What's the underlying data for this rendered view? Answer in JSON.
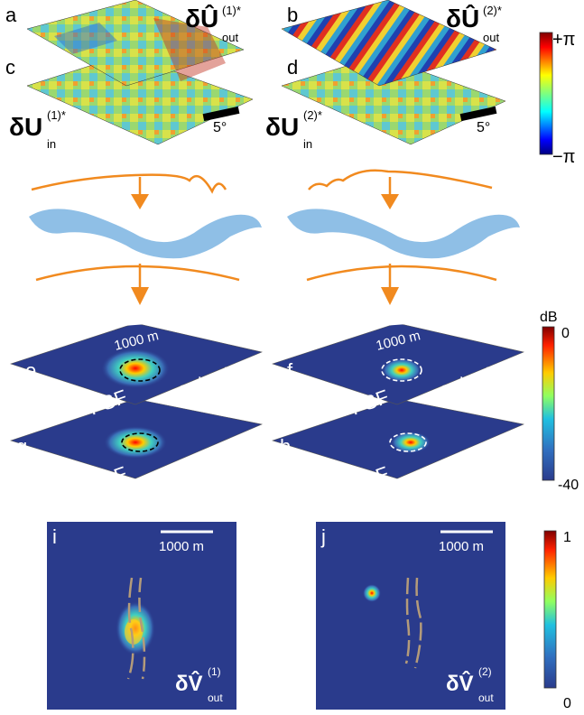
{
  "panels": {
    "a": "a",
    "b": "b",
    "c": "c",
    "d": "d",
    "e": "e",
    "f": "f",
    "g": "g",
    "h": "h",
    "i": "i",
    "j": "j"
  },
  "phase_maps": {
    "out1": {
      "main": "δÛ",
      "sup": "(1)*",
      "sub": "out"
    },
    "out2": {
      "main": "δÛ",
      "sup": "(2)*",
      "sub": "out"
    },
    "in1": {
      "main": "δU",
      "sup": "(1)*",
      "sub": "in"
    },
    "in2": {
      "main": "δU",
      "sup": "(2)*",
      "sub": "in"
    },
    "scale_label_left": "5°",
    "scale_label_right": "5°"
  },
  "colorbar_phase": {
    "top": "+π",
    "bottom": "−π"
  },
  "psf": {
    "e_label": "output",
    "f_label": "output",
    "g_label": "input",
    "h_label": "input",
    "psf_text": "PSF",
    "scale_left": "1000 m",
    "scale_right": "1000 m"
  },
  "colorbar_db": {
    "unit": "dB",
    "top": "0",
    "bottom": "-40"
  },
  "bottom_maps": {
    "scale_left": "1000 m",
    "scale_right": "1000 m",
    "v1": {
      "main": "δV̂",
      "sup": "(1)",
      "sub": "out"
    },
    "v2": {
      "main": "δV̂",
      "sup": "(2)",
      "sub": "out"
    }
  },
  "colorbar_lin": {
    "top": "1",
    "bottom": "0"
  },
  "colors": {
    "background_map": "#2a3b8c",
    "wave": "#f18a1f",
    "medium": "#8fbfe6",
    "vessel": "#b49b7a",
    "dashed_black": "#000000",
    "dashed_white": "#ffffff"
  }
}
